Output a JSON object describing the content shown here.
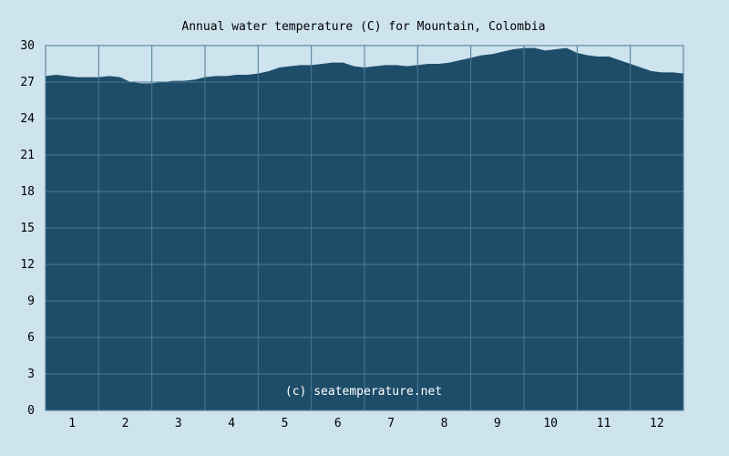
{
  "chart_data": {
    "type": "area",
    "title": "Annual water temperature (C) for Mountain, Colombia",
    "xlabel": "",
    "ylabel": "",
    "xlim": [
      0.5,
      12.5
    ],
    "ylim": [
      0,
      30
    ],
    "grid": true,
    "x_ticks": [
      1,
      2,
      3,
      4,
      5,
      6,
      7,
      8,
      9,
      10,
      11,
      12
    ],
    "y_ticks": [
      0,
      3,
      6,
      9,
      12,
      15,
      18,
      21,
      24,
      27,
      30
    ],
    "x": [
      0.5,
      0.7,
      0.9,
      1.1,
      1.3,
      1.5,
      1.7,
      1.9,
      2.1,
      2.3,
      2.5,
      2.7,
      2.9,
      3.1,
      3.3,
      3.5,
      3.7,
      3.9,
      4.1,
      4.3,
      4.5,
      4.7,
      4.9,
      5.1,
      5.3,
      5.5,
      5.7,
      5.9,
      6.1,
      6.3,
      6.5,
      6.7,
      6.9,
      7.1,
      7.3,
      7.5,
      7.7,
      7.9,
      8.1,
      8.3,
      8.5,
      8.7,
      8.9,
      9.1,
      9.3,
      9.5,
      9.7,
      9.9,
      10.1,
      10.3,
      10.5,
      10.7,
      10.9,
      11.1,
      11.3,
      11.5,
      11.7,
      11.9,
      12.1,
      12.3,
      12.5
    ],
    "y": [
      27.5,
      27.6,
      27.5,
      27.4,
      27.4,
      27.4,
      27.5,
      27.4,
      27.0,
      26.9,
      26.9,
      27.0,
      27.1,
      27.1,
      27.2,
      27.4,
      27.5,
      27.5,
      27.6,
      27.6,
      27.7,
      27.9,
      28.2,
      28.3,
      28.4,
      28.4,
      28.5,
      28.6,
      28.6,
      28.3,
      28.2,
      28.3,
      28.4,
      28.4,
      28.3,
      28.4,
      28.5,
      28.5,
      28.6,
      28.8,
      29.0,
      29.2,
      29.3,
      29.5,
      29.7,
      29.8,
      29.8,
      29.6,
      29.7,
      29.8,
      29.4,
      29.2,
      29.1,
      29.1,
      28.8,
      28.5,
      28.2,
      27.9,
      27.8,
      27.8,
      27.7
    ],
    "series": [
      {
        "name": "",
        "color": "#1e4d69"
      }
    ],
    "annotations": [
      "(c) seatemperature.net"
    ]
  }
}
